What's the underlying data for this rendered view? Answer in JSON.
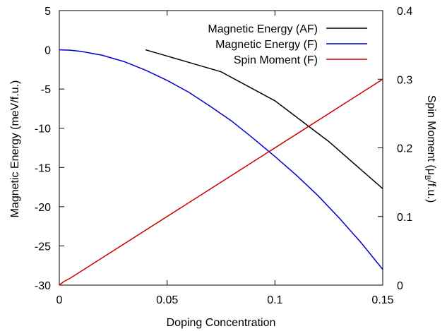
{
  "chart_data": {
    "type": "line",
    "xlabel": "Doping Concentration",
    "ylabel": "Magnetic Energy (meV/f.u.)",
    "y2label_main": "Spin Moment (μ",
    "y2label_sub": "B",
    "y2label_tail": "/f.u.)",
    "xlim": [
      0,
      0.15
    ],
    "ylim": [
      -30,
      5
    ],
    "y2lim": [
      0,
      0.4
    ],
    "x_ticks": [
      "0",
      "0.05",
      "0.1",
      "0.15"
    ],
    "x_tick_values": [
      0,
      0.05,
      0.1,
      0.15
    ],
    "y_ticks": [
      "5",
      "0",
      "-5",
      "-10",
      "-15",
      "-20",
      "-25",
      "-30"
    ],
    "y_tick_values": [
      5,
      0,
      -5,
      -10,
      -15,
      -20,
      -25,
      -30
    ],
    "y2_ticks": [
      "0.4",
      "0.3",
      "0.2",
      "0.1",
      "0"
    ],
    "y2_tick_values": [
      0.4,
      0.3,
      0.2,
      0.1,
      0
    ],
    "grid": false,
    "legend_position": "top-right",
    "series": [
      {
        "name": "Magnetic Energy (AF)",
        "color": "#000000",
        "axis": "left",
        "x": [
          0.04,
          0.05,
          0.075,
          0.1,
          0.125,
          0.15
        ],
        "y": [
          0,
          -0.8,
          -2.8,
          -6.5,
          -11.7,
          -17.7
        ]
      },
      {
        "name": "Magnetic Energy (F)",
        "color": "#0000cc",
        "axis": "left",
        "x": [
          0,
          0.005,
          0.01,
          0.02,
          0.03,
          0.04,
          0.05,
          0.06,
          0.07,
          0.08,
          0.09,
          0.1,
          0.11,
          0.12,
          0.13,
          0.14,
          0.15
        ],
        "y": [
          0,
          -0.05,
          -0.2,
          -0.7,
          -1.5,
          -2.6,
          -3.9,
          -5.4,
          -7.2,
          -9.1,
          -11.3,
          -13.6,
          -16.0,
          -18.6,
          -21.5,
          -24.6,
          -28.0
        ]
      },
      {
        "name": "Spin Moment (F)",
        "color": "#cc0000",
        "axis": "right",
        "x": [
          0,
          0.002,
          0.005,
          0.15
        ],
        "y": [
          0,
          0.005,
          0.01,
          0.3
        ]
      }
    ]
  }
}
